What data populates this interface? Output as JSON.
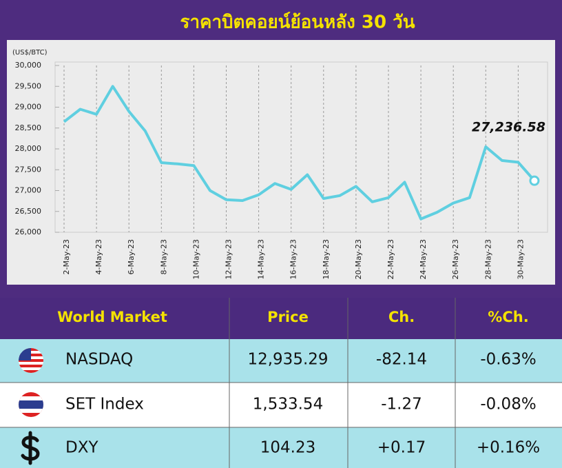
{
  "chart_data": {
    "type": "line",
    "title": "ราคาบิตคอยน์ย้อนหลัง 30 วัน",
    "y_label": "(US$/BTC)",
    "categories": [
      "2-May-23",
      null,
      "4-May-23",
      null,
      "6-May-23",
      null,
      "8-May-23",
      null,
      "10-May-23",
      null,
      "12-May-23",
      null,
      "14-May-23",
      null,
      "16-May-23",
      null,
      "18-May-23",
      null,
      "20-May-23",
      null,
      "22-May-23",
      null,
      "24-May-23",
      null,
      "26-May-23",
      null,
      "28-May-23",
      null,
      "30-May-23",
      null
    ],
    "values": [
      28650,
      28950,
      28830,
      29500,
      28900,
      28430,
      27670,
      27640,
      27600,
      27000,
      26780,
      26760,
      26900,
      27170,
      27030,
      27380,
      26810,
      26880,
      27100,
      26730,
      26830,
      27200,
      26320,
      26480,
      26700,
      26830,
      28050,
      27720,
      27680,
      27236.58
    ],
    "value_labels": [
      null,
      null,
      null,
      null,
      null,
      null,
      null,
      null,
      null,
      null,
      null,
      null,
      null,
      null,
      null,
      null,
      null,
      null,
      null,
      null,
      null,
      null,
      null,
      null,
      null,
      null,
      null,
      null,
      null,
      "27,236.58"
    ],
    "color": "#5fcfe0",
    "ylim": [
      26000,
      30000
    ],
    "yticks": [
      {
        "value": 26000,
        "label": "26,000"
      },
      {
        "value": 26500,
        "label": "26,500"
      },
      {
        "value": 27000,
        "label": "27,000"
      },
      {
        "value": 27500,
        "label": "27,500"
      },
      {
        "value": 28000,
        "label": "28,000"
      },
      {
        "value": 28500,
        "label": "28,500"
      },
      {
        "value": 29000,
        "label": "29,000"
      },
      {
        "value": 29500,
        "label": "29,500"
      },
      {
        "value": 30000,
        "label": "30,000"
      }
    ],
    "grid": true
  },
  "table": {
    "header": [
      "World Market",
      "Price",
      "Ch.",
      "%Ch."
    ],
    "rows": [
      [
        "NASDAQ",
        "12,935.29",
        "-82.14",
        "-0.63%"
      ],
      [
        "SET Index",
        "1,533.54",
        "-1.27",
        "-0.08%"
      ],
      [
        "DXY",
        "104.23",
        "+0.17",
        "+0.16%"
      ]
    ]
  }
}
